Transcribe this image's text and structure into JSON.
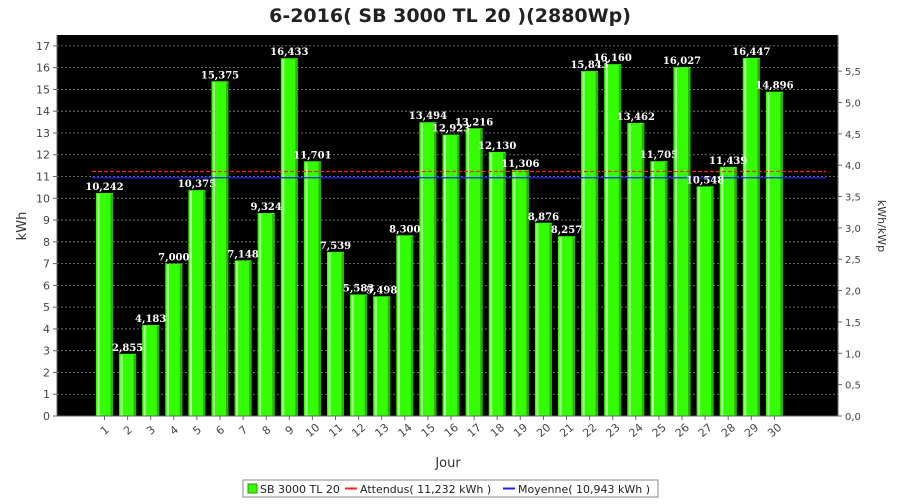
{
  "chart_data": {
    "type": "bar",
    "title": "6-2016( SB 3000 TL 20 )(2880Wp)",
    "xlabel": "Jour",
    "ylabel": "kWh",
    "y2label": "kWh/kWp",
    "ylim": [
      0,
      17.5
    ],
    "y2lim": [
      0,
      6.0764
    ],
    "yticks": [
      "0",
      "1",
      "2",
      "3",
      "4",
      "5",
      "6",
      "7",
      "8",
      "9",
      "10",
      "11",
      "12",
      "13",
      "14",
      "15",
      "16",
      "17"
    ],
    "y2ticks": [
      "0,0",
      "0,5",
      "1,0",
      "1,5",
      "2,0",
      "2,5",
      "3,0",
      "3,5",
      "4,0",
      "4,5",
      "5,0",
      "5,5"
    ],
    "categories": [
      "1",
      "2",
      "3",
      "4",
      "5",
      "6",
      "7",
      "8",
      "9",
      "10",
      "11",
      "12",
      "13",
      "14",
      "15",
      "16",
      "17",
      "18",
      "19",
      "20",
      "21",
      "22",
      "23",
      "24",
      "25",
      "26",
      "27",
      "28",
      "29",
      "30"
    ],
    "values": [
      10.242,
      2.855,
      4.183,
      7.0,
      10.375,
      15.375,
      7.148,
      9.324,
      16.433,
      11.701,
      7.539,
      5.583,
      5.498,
      8.3,
      13.494,
      12.923,
      13.216,
      12.13,
      11.306,
      8.876,
      8.257,
      15.843,
      16.16,
      13.462,
      11.705,
      16.027,
      10.548,
      11.439,
      16.447,
      14.896
    ],
    "value_labels": [
      "10,242",
      "2,855",
      "4,183",
      "7,000",
      "10,375",
      "15,375",
      "7,148",
      "9,324",
      "16,433",
      "11,701",
      "7,539",
      "5,583",
      "5,498",
      "8,300",
      "13,494",
      "12,923",
      "13,216",
      "12,130",
      "11,306",
      "8,876",
      "8,257",
      "15,843",
      "16,160",
      "13,462",
      "11,705",
      "16,027",
      "10,548",
      "11,439",
      "16,447",
      "14,896"
    ],
    "series_name": "SB 3000 TL 20",
    "reference_lines": [
      {
        "name": "Attendus",
        "value": 11.232,
        "color": "#ff2020",
        "legend": "Attendus( 11,232 kWh )"
      },
      {
        "name": "Moyenne",
        "value": 10.943,
        "color": "#2020ff",
        "legend": "Moyenne( 10,943 kWh )"
      }
    ],
    "colors": {
      "bar": "#33ff00",
      "plot_bg": "#000000",
      "grid": "#888888"
    },
    "grid": true,
    "legend_position": "bottom"
  }
}
